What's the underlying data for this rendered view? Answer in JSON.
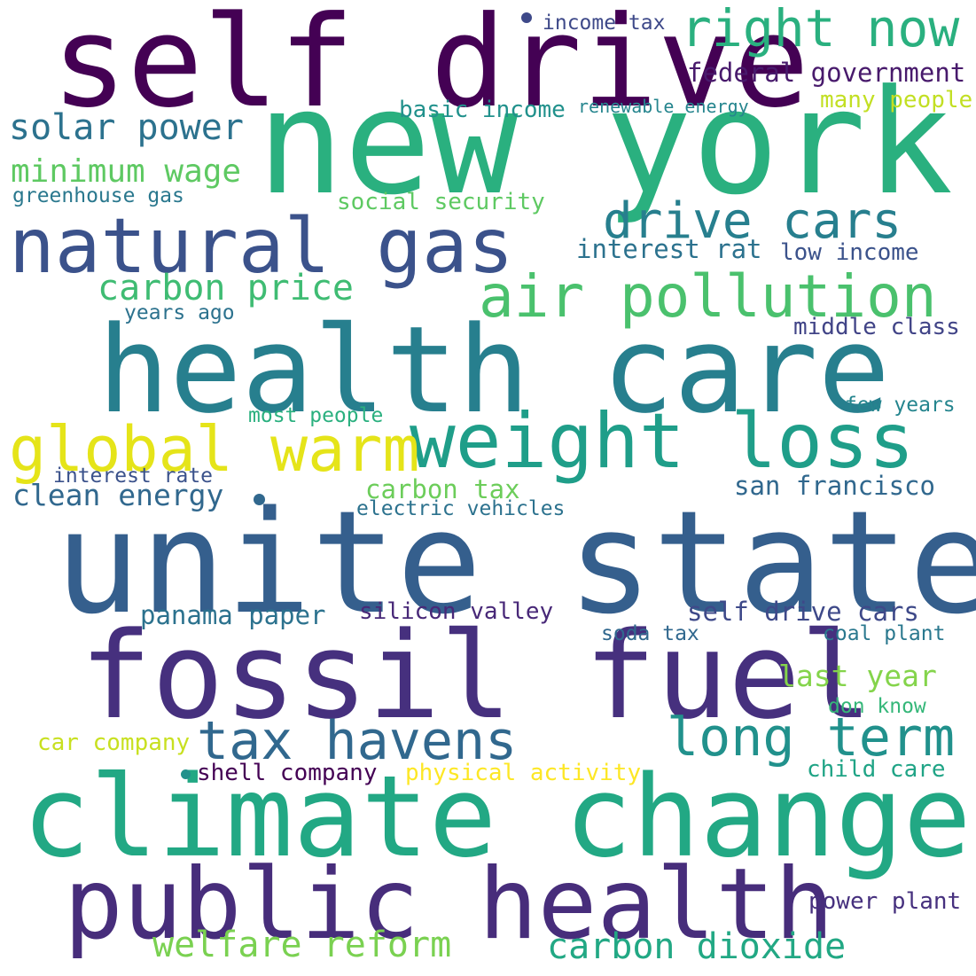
{
  "words": [
    {
      "text": "self drive",
      "color": "#440154"
    },
    {
      "text": "new york",
      "color": "#2ab07f"
    },
    {
      "text": "unite state",
      "color": "#355f8d"
    },
    {
      "text": "health care",
      "color": "#277f8e"
    },
    {
      "text": "fossil fuel",
      "color": "#46307e"
    },
    {
      "text": "climate change",
      "color": "#22a884"
    },
    {
      "text": "public health",
      "color": "#472d7b"
    },
    {
      "text": "natural gas",
      "color": "#3b528b"
    },
    {
      "text": "weight loss",
      "color": "#1f9e89"
    },
    {
      "text": "global warm",
      "color": "#e5e419"
    },
    {
      "text": "air pollution",
      "color": "#4ac16d"
    },
    {
      "text": "drive cars",
      "color": "#277f8e"
    },
    {
      "text": "tax havens",
      "color": "#31688e"
    },
    {
      "text": "long term",
      "color": "#21918c"
    },
    {
      "text": "right now",
      "color": "#2ab07f"
    },
    {
      "text": "solar power",
      "color": "#2c728e"
    },
    {
      "text": "carbon price",
      "color": "#3fbc73"
    },
    {
      "text": "minimum wage",
      "color": "#5ec962"
    },
    {
      "text": "welfare reform",
      "color": "#7ad151"
    },
    {
      "text": "carbon dioxide",
      "color": "#22a884"
    },
    {
      "text": "clean energy",
      "color": "#31688e"
    },
    {
      "text": "federal government",
      "color": "#481a6c"
    },
    {
      "text": "san francisco",
      "color": "#31688e"
    },
    {
      "text": "panama paper",
      "color": "#2c728e"
    },
    {
      "text": "self drive cars",
      "color": "#3e4989"
    },
    {
      "text": "carbon tax",
      "color": "#6ccd5a"
    },
    {
      "text": "interest rat",
      "color": "#2c728e"
    },
    {
      "text": "low income",
      "color": "#3b528b"
    },
    {
      "text": "last year",
      "color": "#84d44b"
    },
    {
      "text": "silicon valley",
      "color": "#482878"
    },
    {
      "text": "basic income",
      "color": "#21918c"
    },
    {
      "text": "social security",
      "color": "#5ec962"
    },
    {
      "text": "greenhouse gas",
      "color": "#2a788e"
    },
    {
      "text": "middle class",
      "color": "#414487"
    },
    {
      "text": "electric vehicles",
      "color": "#2c728e"
    },
    {
      "text": "interest rate",
      "color": "#3b528b"
    },
    {
      "text": "years ago",
      "color": "#2c728e"
    },
    {
      "text": "many people",
      "color": "#c2df23"
    },
    {
      "text": "renewable energy",
      "color": "#25858e"
    },
    {
      "text": "income tax",
      "color": "#3e4989"
    },
    {
      "text": "most people",
      "color": "#2ab07f"
    },
    {
      "text": "few years",
      "color": "#25858e"
    },
    {
      "text": "coal plant",
      "color": "#2a788e"
    },
    {
      "text": "soda tax",
      "color": "#31688e"
    },
    {
      "text": "don know",
      "color": "#35b779"
    },
    {
      "text": "car company",
      "color": "#c8e020"
    },
    {
      "text": "physical activity",
      "color": "#fde725"
    },
    {
      "text": "shell company",
      "color": "#440154"
    },
    {
      "text": "child care",
      "color": "#20a486"
    },
    {
      "text": "power plant",
      "color": "#46307e"
    }
  ],
  "dots": [
    {
      "color": "#3e4989"
    },
    {
      "color": "#31688e"
    },
    {
      "color": "#21918c"
    }
  ]
}
